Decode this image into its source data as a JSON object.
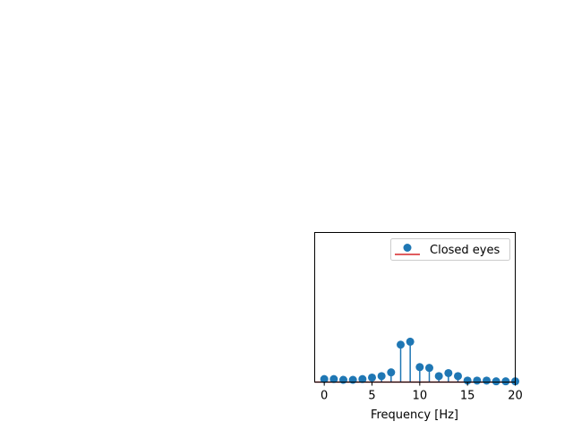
{
  "chart_data": {
    "type": "stem",
    "xlabel": "Frequency [Hz]",
    "xlim": [
      -1,
      20
    ],
    "ylim": [
      0,
      1.0
    ],
    "xticks": [
      "0",
      "5",
      "10",
      "15",
      "20"
    ],
    "xtick_values": [
      0,
      5,
      10,
      15,
      20
    ],
    "yticks_visible": false,
    "legend_position": "upper-right",
    "series": [
      {
        "name": "Closed eyes",
        "marker_color": "#1f77b4",
        "baseline_color": "#d62728",
        "x": [
          0,
          1,
          2,
          3,
          4,
          5,
          6,
          7,
          8,
          9,
          10,
          11,
          12,
          13,
          14,
          15,
          16,
          17,
          18,
          19,
          20
        ],
        "y": [
          0.02,
          0.02,
          0.015,
          0.015,
          0.02,
          0.03,
          0.04,
          0.065,
          0.25,
          0.27,
          0.1,
          0.095,
          0.04,
          0.06,
          0.04,
          0.01,
          0.01,
          0.01,
          0.005,
          0.005,
          0.005
        ]
      }
    ]
  }
}
